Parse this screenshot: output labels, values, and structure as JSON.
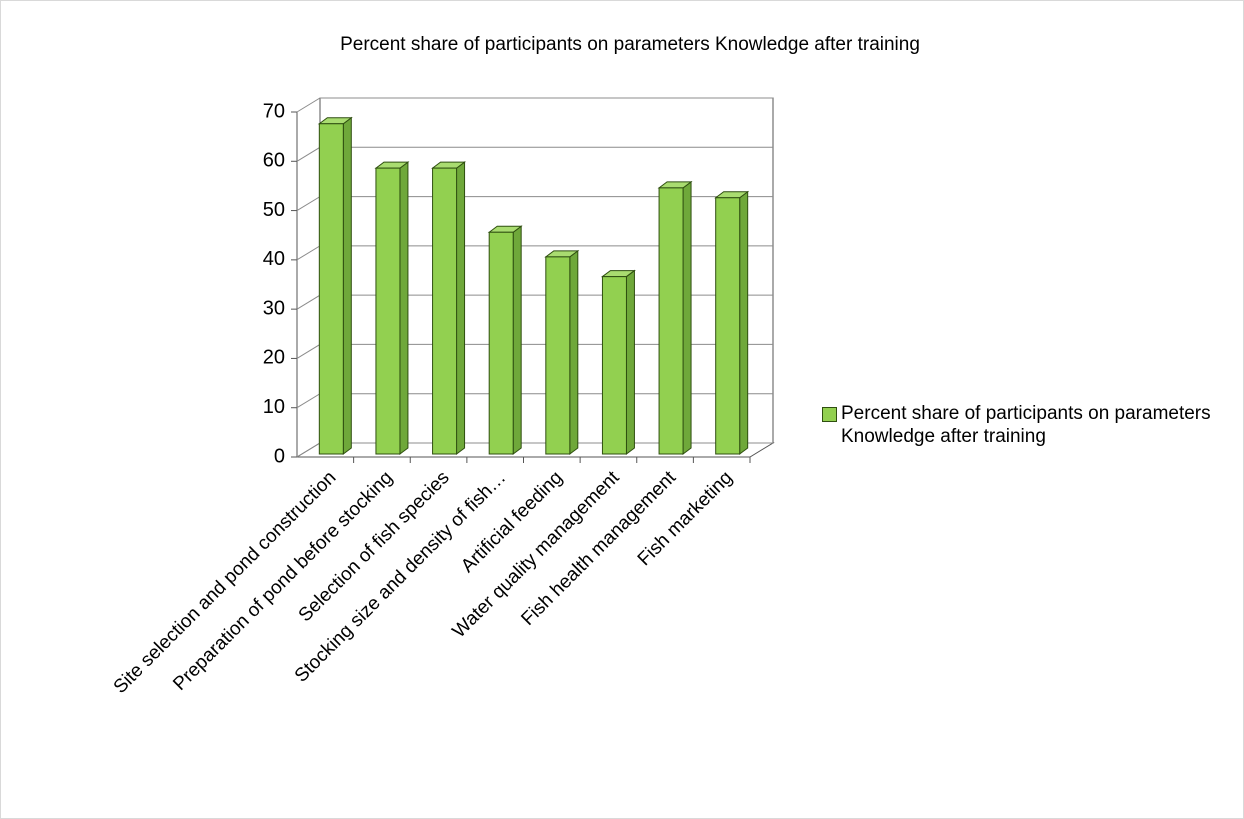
{
  "chart_data": {
    "type": "bar",
    "title": "Percent share of participants on parameters Knowledge after training",
    "categories": [
      "Site selection and pond construction",
      "Preparation of pond before stocking",
      "Selection of fish species",
      "Stocking size and density of fish…",
      "Artificial feeding",
      "Water quality management",
      "Fish health management",
      "Fish marketing"
    ],
    "series": [
      {
        "name": "Percent share of participants on parameters Knowledge after training",
        "color": "#92d050",
        "values": [
          67,
          58,
          58,
          45,
          40,
          36,
          54,
          52
        ]
      }
    ],
    "ylim": [
      0,
      70
    ],
    "yticks": [
      0,
      10,
      20,
      30,
      40,
      50,
      60,
      70
    ],
    "grid": true,
    "legend": "right"
  }
}
